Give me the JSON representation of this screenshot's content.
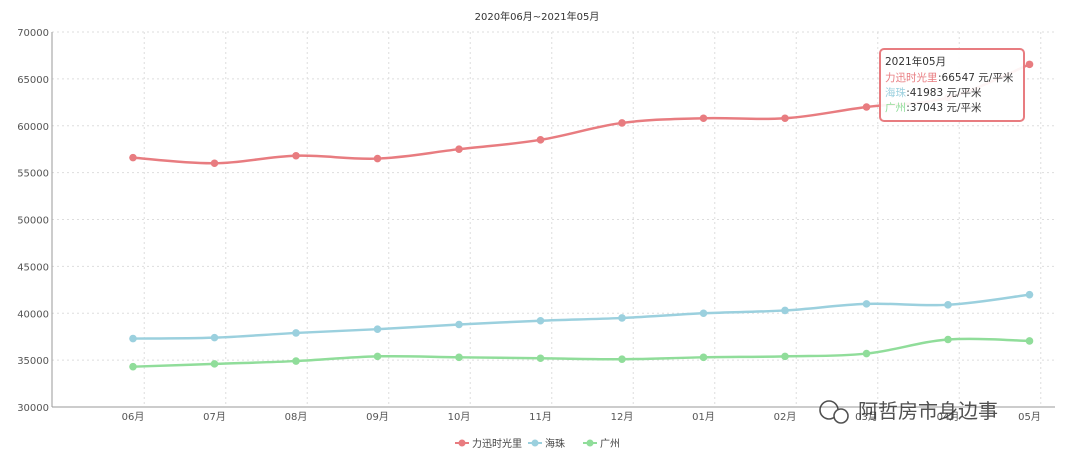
{
  "chart_data": {
    "type": "line",
    "title": "2020年06月~2021年05月",
    "categories": [
      "06月",
      "07月",
      "08月",
      "09月",
      "10月",
      "11月",
      "12月",
      "01月",
      "02月",
      "03月",
      "04月",
      "05月"
    ],
    "ylim": [
      30000,
      70000
    ],
    "yticks": [
      30000,
      35000,
      40000,
      45000,
      50000,
      55000,
      60000,
      65000,
      70000
    ],
    "grid": true,
    "legend_position": "bottom-center",
    "series": [
      {
        "name": "力迅时光里",
        "color": "#e87c80",
        "values": [
          56600,
          56000,
          56800,
          56500,
          57500,
          58500,
          60300,
          60800,
          60800,
          62000,
          63000,
          66547
        ]
      },
      {
        "name": "海珠",
        "color": "#9bd0de",
        "values": [
          37300,
          37400,
          37900,
          38300,
          38800,
          39200,
          39500,
          40000,
          40300,
          41000,
          40900,
          41983
        ]
      },
      {
        "name": "广州",
        "color": "#90dd9a",
        "values": [
          34300,
          34600,
          34900,
          35400,
          35300,
          35200,
          35100,
          35300,
          35400,
          35700,
          37200,
          37043
        ]
      }
    ],
    "tooltip": {
      "title": "2021年05月",
      "rows": [
        {
          "name": "力迅时光里",
          "value": ":66547 元/平米",
          "color": "#e87c80"
        },
        {
          "name": "海珠",
          "value": ":41983 元/平米",
          "color": "#9bd0de"
        },
        {
          "name": "广州",
          "value": ":37043 元/平米",
          "color": "#90dd9a"
        }
      ]
    }
  },
  "watermark": {
    "text": "阿哲房市身边事",
    "icon": "wechat-icon"
  }
}
